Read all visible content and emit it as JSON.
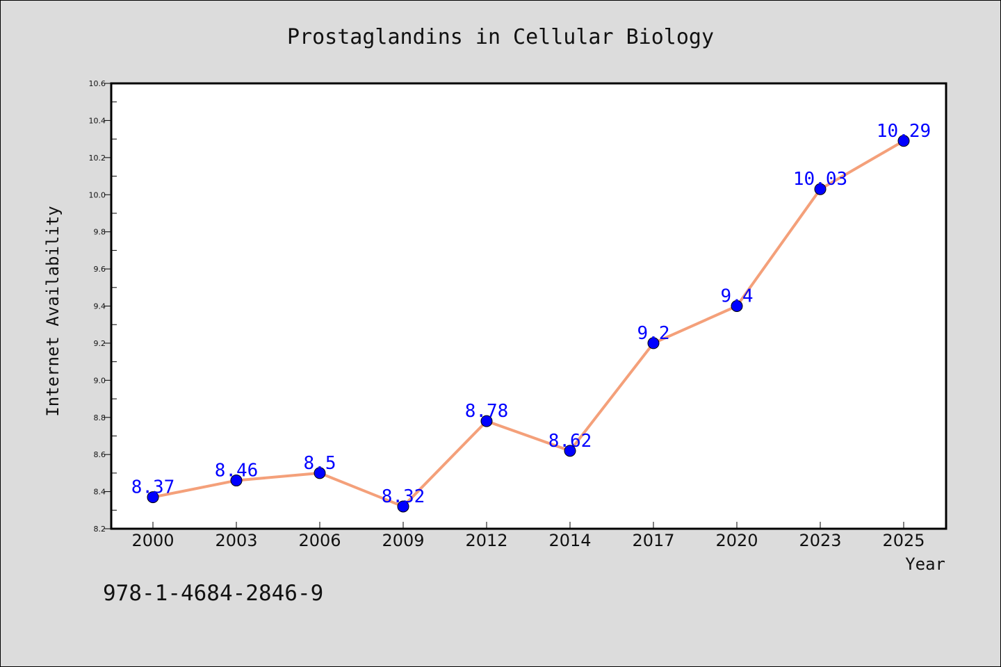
{
  "chart_data": {
    "type": "line",
    "title": "Prostaglandins in Cellular Biology",
    "xlabel": "Year",
    "ylabel": "Internet Availability",
    "categories": [
      "2000",
      "2003",
      "2006",
      "2009",
      "2012",
      "2014",
      "2017",
      "2020",
      "2023",
      "2025"
    ],
    "series": [
      {
        "values": [
          8.37,
          8.46,
          8.5,
          8.32,
          8.78,
          8.62,
          9.2,
          9.4,
          10.03,
          10.29
        ],
        "line_color": "#f4a07a",
        "marker_color": "#0000ff"
      }
    ],
    "data_labels": [
      "8.37",
      "8.46",
      "8.5",
      "8.32",
      "8.78",
      "8.62",
      "9.2",
      "9.4",
      "10.03",
      "10.29"
    ],
    "ylim": [
      8.2,
      10.6
    ],
    "yticks": [
      "8.2",
      "8.4",
      "8.6",
      "8.8",
      "9.0",
      "9.2",
      "9.4",
      "9.6",
      "9.8",
      "10.0",
      "10.2",
      "10.4",
      "10.6"
    ],
    "grid": false,
    "legend": "none"
  },
  "footer": {
    "isbn": "978-1-4684-2846-9"
  }
}
